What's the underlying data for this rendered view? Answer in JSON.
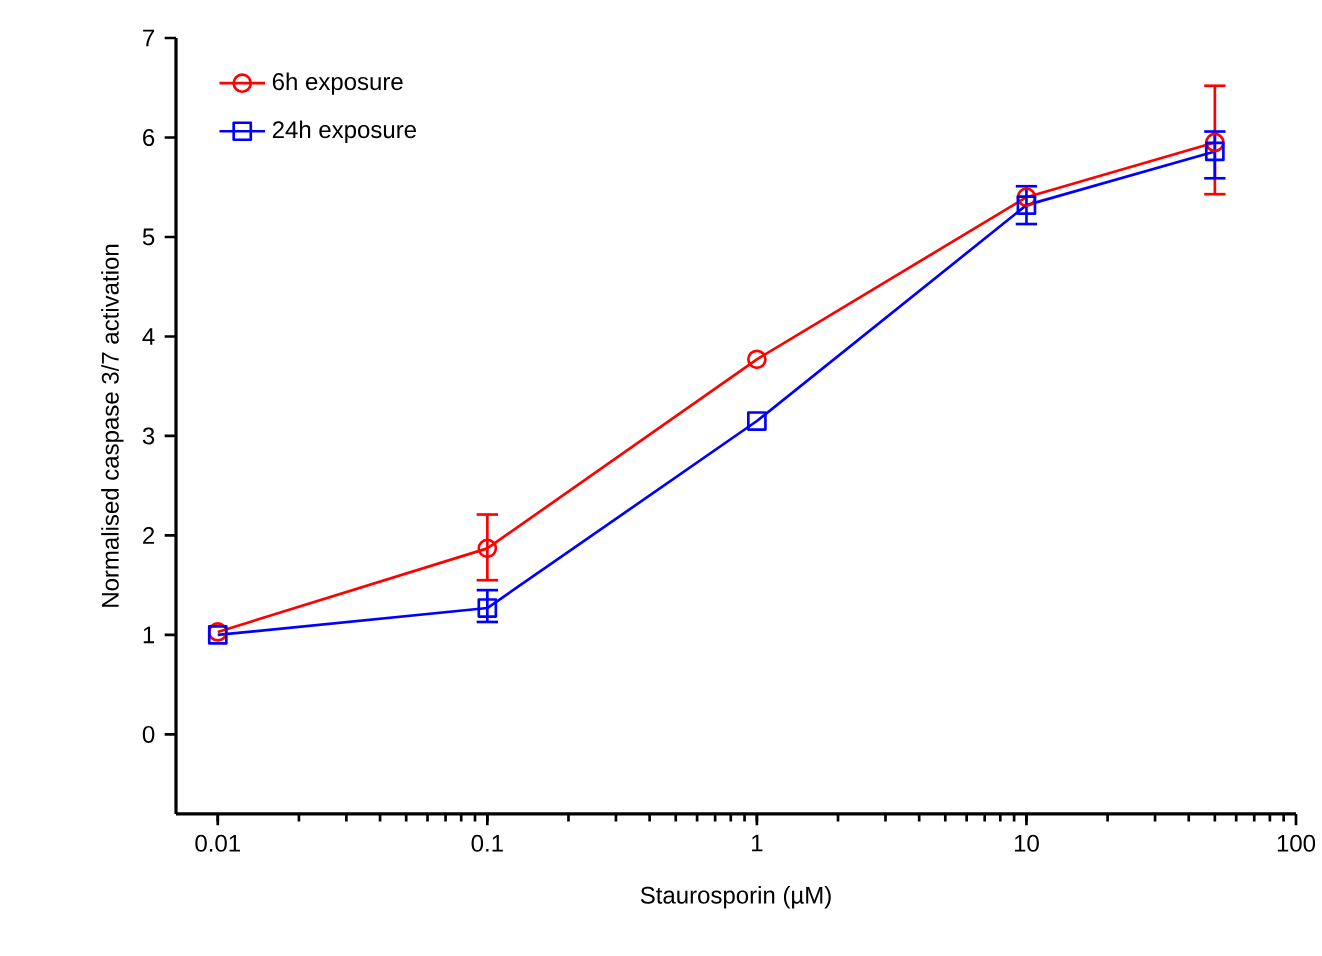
{
  "chart_data": {
    "type": "line",
    "xlabel": "Staurosporin (µM)",
    "ylabel": "Normalised caspase 3/7 activation",
    "x": [
      0.01,
      0.1,
      1,
      10,
      50
    ],
    "log": "x",
    "xlim": [
      0.007,
      100
    ],
    "ylim": [
      -0.8,
      7
    ],
    "xticks": [
      {
        "value": 0.01,
        "label": "0.01"
      },
      {
        "value": 0.1,
        "label": "0.1"
      },
      1,
      10,
      100
    ],
    "yticks": [
      0,
      1,
      2,
      3,
      4,
      5,
      6,
      7
    ],
    "grid": false,
    "legend": "top left",
    "series": [
      {
        "name": "6h exposure",
        "color": "#ff0000",
        "marker": "circle",
        "values": [
          1.03,
          1.87,
          3.77,
          5.4,
          5.95
        ],
        "errors": [
          null,
          [
            1.55,
            2.21
          ],
          null,
          null,
          [
            5.43,
            6.52
          ]
        ]
      },
      {
        "name": "24h exposure",
        "color": "#0000ff",
        "marker": "square",
        "values": [
          1.0,
          1.27,
          3.15,
          5.32,
          5.86
        ],
        "errors": [
          null,
          [
            1.13,
            1.45
          ],
          null,
          [
            5.13,
            5.51
          ],
          [
            5.59,
            6.06
          ]
        ]
      }
    ]
  }
}
